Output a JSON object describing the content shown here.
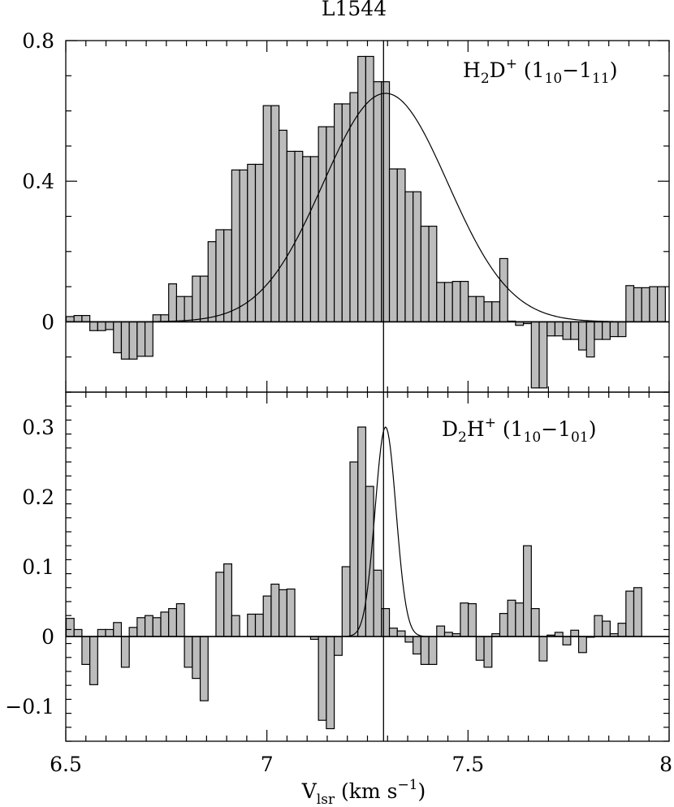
{
  "chart_data": {
    "title": "L1544",
    "type": "histogram",
    "xlabel": {
      "main": "V",
      "sub": "lsr",
      "rest": " (km s",
      "sup": "−1",
      "end": ")"
    },
    "xlim": [
      6.5,
      8.0
    ],
    "xticks": [
      6.5,
      7,
      7.5,
      8
    ],
    "xtick_labels": [
      "6.5",
      "7",
      "7.5",
      "8"
    ],
    "vline_x": 7.29,
    "panels": [
      {
        "id": "top",
        "species": {
          "a": "H",
          "a_sub": "2",
          "b": "D",
          "b_sup": "+",
          "trans_open": " (1",
          "t1": "10",
          "dash": "−1",
          "t2": "11",
          "close": ")"
        },
        "ylim": [
          -0.2,
          0.8
        ],
        "yticks": [
          0,
          0.4,
          0.8
        ],
        "ytick_labels": [
          "0",
          "0.4",
          "0.8"
        ],
        "bin_start": 6.501,
        "bin_width": 0.0196,
        "values": [
          0.015,
          0.018,
          0.018,
          -0.025,
          -0.025,
          -0.022,
          -0.088,
          -0.106,
          -0.106,
          -0.098,
          -0.098,
          0.02,
          0.02,
          0.108,
          0.072,
          0.072,
          0.13,
          0.13,
          0.228,
          0.262,
          0.262,
          0.432,
          0.432,
          0.448,
          0.448,
          0.615,
          0.615,
          0.545,
          0.485,
          0.485,
          0.47,
          0.47,
          0.555,
          0.555,
          0.62,
          0.62,
          0.652,
          0.755,
          0.755,
          0.683,
          0.683,
          0.435,
          0.435,
          0.37,
          0.37,
          0.272,
          0.272,
          0.112,
          0.112,
          0.115,
          0.115,
          0.072,
          0.072,
          0.057,
          0.057,
          0.18,
          0.002,
          -0.01,
          -0.005,
          -0.188,
          -0.188,
          -0.04,
          -0.04,
          -0.05,
          -0.05,
          -0.08,
          -0.1,
          -0.05,
          -0.05,
          -0.042,
          -0.042,
          0.103,
          0.097,
          0.097,
          0.1,
          0.1
        ],
        "fit": {
          "amplitude": 0.65,
          "center": 7.295,
          "sigma": 0.155
        }
      },
      {
        "id": "bottom",
        "species": {
          "a": "D",
          "a_sub": "2",
          "b": "H",
          "b_sup": "+",
          "trans_open": " (1",
          "t1": "10",
          "dash": "−1",
          "t2": "01",
          "close": ")"
        },
        "ylim": [
          -0.15,
          0.35
        ],
        "yticks": [
          -0.1,
          0,
          0.1,
          0.2,
          0.3
        ],
        "ytick_labels": [
          "−0.1",
          "0",
          "0.1",
          "0.2",
          "0.3"
        ],
        "bin_start": 6.501,
        "bin_width": 0.0196,
        "values": [
          0.026,
          0.01,
          -0.04,
          -0.069,
          0.01,
          0.01,
          0.02,
          -0.044,
          0.013,
          0.027,
          0.03,
          0.027,
          0.035,
          0.04,
          0.047,
          -0.044,
          -0.06,
          -0.092,
          0.0,
          0.092,
          0.104,
          0.03,
          0.0,
          0.032,
          0.032,
          0.058,
          0.075,
          0.067,
          0.068,
          0.0,
          0.0,
          -0.004,
          -0.12,
          -0.132,
          -0.027,
          0.1,
          0.25,
          0.3,
          0.215,
          0.095,
          0.04,
          0.012,
          0.008,
          -0.008,
          -0.025,
          -0.04,
          -0.04,
          0.015,
          0.006,
          0.004,
          0.048,
          0.047,
          -0.034,
          -0.044,
          0.004,
          0.033,
          0.052,
          0.048,
          0.13,
          0.04,
          -0.035,
          0.002,
          0.006,
          -0.012,
          0.009,
          -0.023,
          -0.001,
          0.03,
          0.022,
          0.004,
          0.019,
          0.065,
          0.07,
          0.0,
          0.0,
          0.0
        ],
        "fit": {
          "amplitude": 0.3,
          "center": 7.295,
          "sigma": 0.026
        }
      }
    ]
  }
}
